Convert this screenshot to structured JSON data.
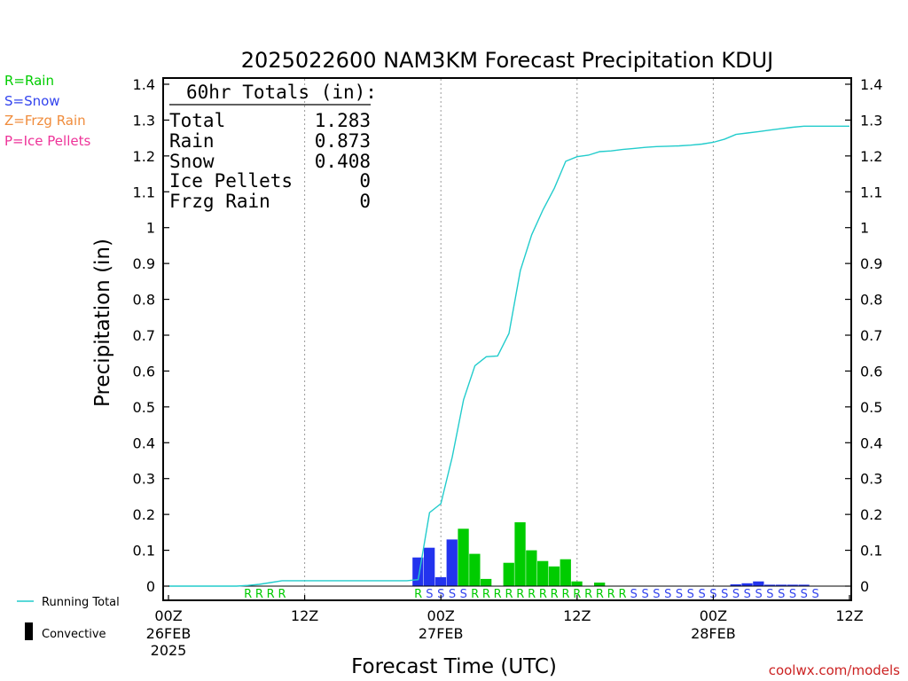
{
  "title": "2025022600 NAM3KM Forecast Precipitation KDUJ",
  "footer": "coolwx.com/models",
  "legend": {
    "types": [
      {
        "label": "R=Rain",
        "color": "#00cc00"
      },
      {
        "label": "S=Snow",
        "color": "#3344ee"
      },
      {
        "label": "Z=Frzg Rain",
        "color": "#f08c3c"
      },
      {
        "label": "P=Ice Pellets",
        "color": "#ee3399"
      }
    ],
    "running_total_label": "Running Total",
    "convective_label": "Convective"
  },
  "totals_box": {
    "header": "60hr Totals (in):",
    "rows": [
      {
        "label": "Total",
        "value": "1.283"
      },
      {
        "label": "Rain",
        "value": "0.873"
      },
      {
        "label": "Snow",
        "value": "0.408"
      },
      {
        "label": "Ice Pellets",
        "value": "0"
      },
      {
        "label": "Frzg Rain",
        "value": "0"
      }
    ]
  },
  "chart_data": {
    "type": "bar",
    "ylabel": "Precipitation (in)",
    "xlabel": "Forecast Time (UTC)",
    "ylim": [
      0,
      1.4
    ],
    "xlim_hours": [
      0,
      60
    ],
    "y_ticks": [
      "0",
      "0.1",
      "0.2",
      "0.3",
      "0.4",
      "0.5",
      "0.6",
      "0.7",
      "0.8",
      "0.9",
      "1",
      "1.1",
      "1.2",
      "1.3",
      "1.4"
    ],
    "x_ticks": [
      {
        "hour": 0,
        "label": "00Z",
        "sub1": "26FEB",
        "sub2": "2025"
      },
      {
        "hour": 12,
        "label": "12Z",
        "sub1": "",
        "sub2": ""
      },
      {
        "hour": 24,
        "label": "00Z",
        "sub1": "27FEB",
        "sub2": ""
      },
      {
        "hour": 36,
        "label": "12Z",
        "sub1": "",
        "sub2": ""
      },
      {
        "hour": 48,
        "label": "00Z",
        "sub1": "28FEB",
        "sub2": ""
      },
      {
        "hour": 60,
        "label": "12Z",
        "sub1": "",
        "sub2": ""
      }
    ],
    "grid": "vertical dotted at 00Z and 12Z",
    "colors": {
      "rain": "#00cc00",
      "snow": "#2233ee",
      "line": "#22cccc"
    },
    "bars": [
      {
        "hour": 22,
        "value": 0.08,
        "type": "snow"
      },
      {
        "hour": 23,
        "value": 0.107,
        "type": "snow"
      },
      {
        "hour": 24,
        "value": 0.025,
        "type": "snow"
      },
      {
        "hour": 25,
        "value": 0.13,
        "type": "snow"
      },
      {
        "hour": 26,
        "value": 0.16,
        "type": "rain"
      },
      {
        "hour": 27,
        "value": 0.09,
        "type": "rain"
      },
      {
        "hour": 28,
        "value": 0.02,
        "type": "rain"
      },
      {
        "hour": 30,
        "value": 0.065,
        "type": "rain"
      },
      {
        "hour": 31,
        "value": 0.178,
        "type": "rain"
      },
      {
        "hour": 32,
        "value": 0.1,
        "type": "rain"
      },
      {
        "hour": 33,
        "value": 0.07,
        "type": "rain"
      },
      {
        "hour": 34,
        "value": 0.055,
        "type": "rain"
      },
      {
        "hour": 35,
        "value": 0.075,
        "type": "rain"
      },
      {
        "hour": 36,
        "value": 0.013,
        "type": "rain"
      },
      {
        "hour": 38,
        "value": 0.01,
        "type": "rain"
      },
      {
        "hour": 50,
        "value": 0.005,
        "type": "snow"
      },
      {
        "hour": 51,
        "value": 0.008,
        "type": "snow"
      },
      {
        "hour": 52,
        "value": 0.013,
        "type": "snow"
      },
      {
        "hour": 53,
        "value": 0.004,
        "type": "snow"
      },
      {
        "hour": 54,
        "value": 0.004,
        "type": "snow"
      },
      {
        "hour": 55,
        "value": 0.004,
        "type": "snow"
      },
      {
        "hour": 56,
        "value": 0.004,
        "type": "snow"
      }
    ],
    "running_total": {
      "hours": [
        0,
        1,
        2,
        3,
        4,
        5,
        6,
        7,
        8,
        9,
        10,
        11,
        12,
        13,
        14,
        15,
        16,
        17,
        18,
        19,
        20,
        21,
        22,
        23,
        24,
        25,
        26,
        27,
        28,
        29,
        30,
        31,
        32,
        33,
        34,
        35,
        36,
        37,
        38,
        39,
        40,
        41,
        42,
        43,
        44,
        45,
        46,
        47,
        48,
        49,
        50,
        51,
        52,
        53,
        54,
        55,
        56,
        57,
        58,
        59,
        60
      ],
      "values": [
        0,
        0,
        0,
        0,
        0,
        0,
        0,
        0.002,
        0.005,
        0.01,
        0.015,
        0.015,
        0.015,
        0.015,
        0.015,
        0.015,
        0.015,
        0.015,
        0.015,
        0.015,
        0.015,
        0.015,
        0.018,
        0.205,
        0.23,
        0.36,
        0.52,
        0.615,
        0.64,
        0.642,
        0.705,
        0.88,
        0.98,
        1.05,
        1.11,
        1.185,
        1.198,
        1.202,
        1.212,
        1.214,
        1.218,
        1.221,
        1.224,
        1.226,
        1.227,
        1.228,
        1.23,
        1.233,
        1.238,
        1.247,
        1.26,
        1.264,
        1.268,
        1.272,
        1.276,
        1.28,
        1.283,
        1.283,
        1.283,
        1.283,
        1.283
      ]
    },
    "ptype_row": [
      {
        "hour": 7,
        "code": "R"
      },
      {
        "hour": 8,
        "code": "R"
      },
      {
        "hour": 9,
        "code": "R"
      },
      {
        "hour": 10,
        "code": "R"
      },
      {
        "hour": 22,
        "code": "R"
      },
      {
        "hour": 23,
        "code": "S"
      },
      {
        "hour": 24,
        "code": "S"
      },
      {
        "hour": 25,
        "code": "S"
      },
      {
        "hour": 26,
        "code": "S"
      },
      {
        "hour": 27,
        "code": "R"
      },
      {
        "hour": 28,
        "code": "R"
      },
      {
        "hour": 29,
        "code": "R"
      },
      {
        "hour": 30,
        "code": "R"
      },
      {
        "hour": 31,
        "code": "R"
      },
      {
        "hour": 32,
        "code": "R"
      },
      {
        "hour": 33,
        "code": "R"
      },
      {
        "hour": 34,
        "code": "R"
      },
      {
        "hour": 35,
        "code": "R"
      },
      {
        "hour": 36,
        "code": "R"
      },
      {
        "hour": 37,
        "code": "R"
      },
      {
        "hour": 38,
        "code": "R"
      },
      {
        "hour": 39,
        "code": "R"
      },
      {
        "hour": 40,
        "code": "R"
      },
      {
        "hour": 41,
        "code": "S"
      },
      {
        "hour": 42,
        "code": "S"
      },
      {
        "hour": 43,
        "code": "S"
      },
      {
        "hour": 44,
        "code": "S"
      },
      {
        "hour": 45,
        "code": "S"
      },
      {
        "hour": 46,
        "code": "S"
      },
      {
        "hour": 47,
        "code": "S"
      },
      {
        "hour": 48,
        "code": "S"
      },
      {
        "hour": 49,
        "code": "S"
      },
      {
        "hour": 50,
        "code": "S"
      },
      {
        "hour": 51,
        "code": "S"
      },
      {
        "hour": 52,
        "code": "S"
      },
      {
        "hour": 53,
        "code": "S"
      },
      {
        "hour": 54,
        "code": "S"
      },
      {
        "hour": 55,
        "code": "S"
      },
      {
        "hour": 56,
        "code": "S"
      },
      {
        "hour": 57,
        "code": "S"
      }
    ]
  }
}
